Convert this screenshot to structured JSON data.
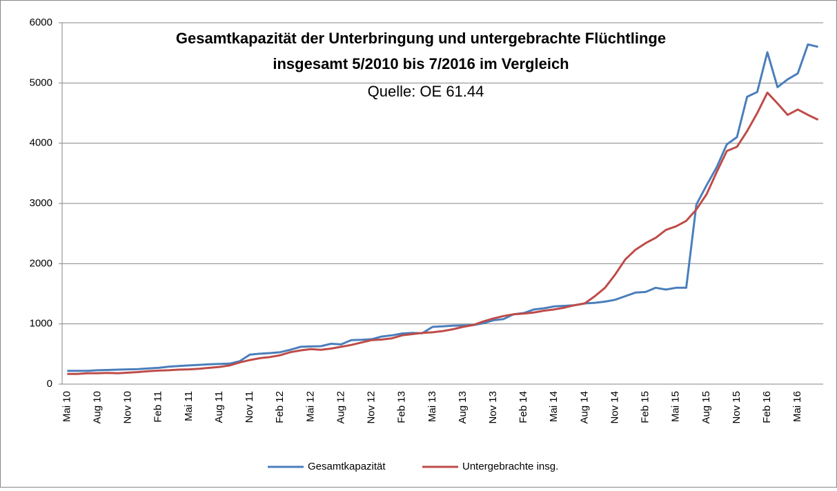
{
  "chart_data": {
    "type": "line",
    "title_lines": [
      "Gesamtkapazität der Unterbringung und untergebrachte Flüchtlinge",
      "insgesamt  5/2010 bis 7/2016 im Vergleich"
    ],
    "subtitle": "Quelle: OE 61.44",
    "categories": [
      "Mai 10",
      null,
      null,
      "Aug 10",
      null,
      null,
      "Nov 10",
      null,
      null,
      "Feb 11",
      null,
      null,
      "Mai 11",
      null,
      null,
      "Aug 11",
      null,
      null,
      "Nov 11",
      null,
      null,
      "Feb 12",
      null,
      null,
      "Mai 12",
      null,
      null,
      "Aug 12",
      null,
      null,
      "Nov 12",
      null,
      null,
      "Feb 13",
      null,
      null,
      "Mai 13",
      null,
      null,
      "Aug 13",
      null,
      null,
      "Nov 13",
      null,
      null,
      "Feb 14",
      null,
      null,
      "Mai 14",
      null,
      null,
      "Aug 14",
      null,
      null,
      "Nov 14",
      null,
      null,
      "Feb 15",
      null,
      null,
      "Mai 15",
      null,
      null,
      "Aug 15",
      null,
      null,
      "Nov 15",
      null,
      null,
      "Feb 16",
      null,
      null,
      "Mai 16",
      null,
      null
    ],
    "series": [
      {
        "name": "Gesamtkapazität",
        "color": "#4a7ebb",
        "values": [
          220,
          220,
          220,
          230,
          235,
          240,
          245,
          250,
          260,
          270,
          290,
          300,
          310,
          320,
          330,
          335,
          340,
          380,
          490,
          505,
          515,
          530,
          570,
          620,
          625,
          630,
          670,
          660,
          730,
          735,
          745,
          790,
          810,
          840,
          850,
          845,
          950,
          960,
          970,
          975,
          980,
          1010,
          1060,
          1080,
          1160,
          1180,
          1240,
          1260,
          1290,
          1300,
          1310,
          1340,
          1350,
          1370,
          1400,
          1460,
          1520,
          1530,
          1600,
          1570,
          1600,
          1600,
          2980,
          3300,
          3600,
          3980,
          4100,
          4770,
          4850,
          5510,
          4930,
          5060,
          5160,
          5640,
          5600
        ]
      },
      {
        "name": "Untergebrachte insg.",
        "color": "#be4b48",
        "values": [
          170,
          170,
          180,
          180,
          185,
          180,
          190,
          200,
          215,
          225,
          230,
          240,
          245,
          255,
          270,
          285,
          310,
          360,
          400,
          430,
          450,
          480,
          530,
          560,
          580,
          570,
          590,
          620,
          650,
          690,
          730,
          740,
          760,
          810,
          830,
          850,
          860,
          880,
          910,
          950,
          980,
          1040,
          1090,
          1130,
          1160,
          1170,
          1190,
          1220,
          1240,
          1270,
          1310,
          1340,
          1460,
          1600,
          1820,
          2070,
          2230,
          2340,
          2430,
          2560,
          2620,
          2710,
          2900,
          3150,
          3520,
          3870,
          3940,
          4200,
          4500,
          4840,
          4660,
          4470,
          4560,
          4470,
          4390
        ]
      }
    ],
    "ylim": [
      0,
      6000
    ],
    "yticks": [
      0,
      1000,
      2000,
      3000,
      4000,
      5000,
      6000
    ],
    "grid": true,
    "legend": "bottom"
  }
}
